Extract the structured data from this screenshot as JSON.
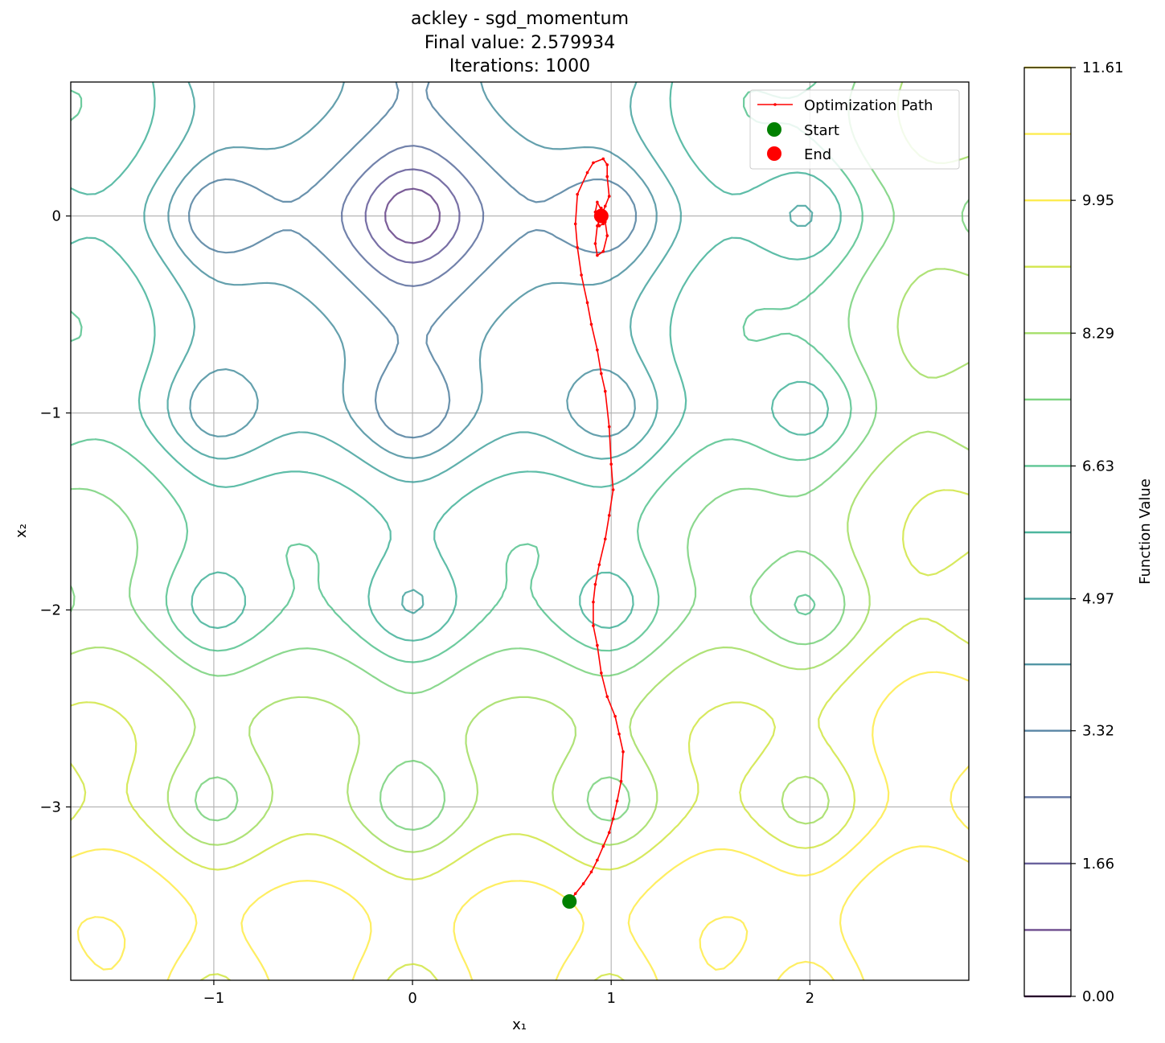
{
  "chart_data": {
    "type": "contour",
    "title_lines": [
      "ackley - sgd_momentum",
      "Final value: 2.579934",
      "Iterations: 1000"
    ],
    "xlabel": "x₁",
    "ylabel": "x₂",
    "xlim": [
      -1.72,
      2.8
    ],
    "ylim": [
      -3.88,
      0.68
    ],
    "x_ticks": [
      -1,
      0,
      1,
      2
    ],
    "x_tick_labels": [
      "−1",
      "0",
      "1",
      "2"
    ],
    "y_ticks": [
      0,
      -1,
      -2,
      -3
    ],
    "y_tick_labels": [
      "0",
      "−1",
      "−2",
      "−3"
    ],
    "grid": true,
    "contour_function": "ackley",
    "contour_levels": [
      0.0,
      0.83,
      1.66,
      2.49,
      3.32,
      4.15,
      4.97,
      5.8,
      6.63,
      7.46,
      8.29,
      9.12,
      9.95,
      10.78,
      11.61
    ],
    "colorbar": {
      "label": "Function Value",
      "range": [
        0.0,
        11.61
      ],
      "tick_values": [
        0.0,
        1.66,
        3.32,
        4.97,
        6.63,
        8.29,
        9.95,
        11.61
      ],
      "tick_labels": [
        "0.00",
        "1.66",
        "3.32",
        "4.97",
        "6.63",
        "8.29",
        "9.95",
        "11.61"
      ],
      "line_colors": [
        "#440154",
        "#481f70",
        "#443983",
        "#3b528b",
        "#31688e",
        "#287c8e",
        "#21918c",
        "#20a486",
        "#35b779",
        "#5ec962",
        "#90d743",
        "#c8e020",
        "#fde725",
        "#fde725",
        "#fde725"
      ]
    },
    "legend": {
      "placement": "upper right",
      "entries": [
        {
          "label": "Optimization Path",
          "marker": "line",
          "color": "#ff0000"
        },
        {
          "label": "Start",
          "marker": "circle",
          "color": "#008000"
        },
        {
          "label": "End",
          "marker": "circle",
          "color": "#ff0000"
        }
      ]
    },
    "path": {
      "color": "#ff0000",
      "points": [
        [
          0.79,
          -3.48
        ],
        [
          0.82,
          -3.44
        ],
        [
          0.86,
          -3.39
        ],
        [
          0.9,
          -3.33
        ],
        [
          0.93,
          -3.27
        ],
        [
          0.96,
          -3.2
        ],
        [
          0.99,
          -3.13
        ],
        [
          1.01,
          -3.06
        ],
        [
          1.03,
          -2.97
        ],
        [
          1.05,
          -2.87
        ],
        [
          1.06,
          -2.72
        ],
        [
          1.04,
          -2.63
        ],
        [
          1.02,
          -2.54
        ],
        [
          0.98,
          -2.44
        ],
        [
          0.95,
          -2.32
        ],
        [
          0.93,
          -2.18
        ],
        [
          0.91,
          -2.08
        ],
        [
          0.91,
          -1.96
        ],
        [
          0.92,
          -1.87
        ],
        [
          0.94,
          -1.77
        ],
        [
          0.97,
          -1.64
        ],
        [
          0.99,
          -1.52
        ],
        [
          1.01,
          -1.39
        ],
        [
          1.0,
          -1.26
        ],
        [
          0.99,
          -1.07
        ],
        [
          0.97,
          -0.89
        ],
        [
          0.95,
          -0.8
        ],
        [
          0.93,
          -0.68
        ],
        [
          0.9,
          -0.55
        ],
        [
          0.88,
          -0.44
        ],
        [
          0.85,
          -0.3
        ],
        [
          0.83,
          -0.16
        ],
        [
          0.82,
          -0.04
        ],
        [
          0.83,
          0.11
        ],
        [
          0.88,
          0.22
        ],
        [
          0.91,
          0.27
        ],
        [
          0.96,
          0.29
        ],
        [
          0.98,
          0.26
        ],
        [
          0.98,
          0.2
        ],
        [
          0.99,
          0.1
        ],
        [
          0.97,
          0.05
        ],
        [
          0.95,
          0.0
        ],
        [
          0.93,
          -0.05
        ],
        [
          0.92,
          -0.14
        ],
        [
          0.93,
          -0.2
        ],
        [
          0.96,
          -0.18
        ],
        [
          0.98,
          -0.1
        ],
        [
          0.97,
          -0.03
        ],
        [
          0.95,
          0.03
        ],
        [
          0.93,
          0.07
        ],
        [
          0.92,
          0.02
        ],
        [
          0.94,
          -0.05
        ],
        [
          0.96,
          -0.04
        ],
        [
          0.97,
          0.01
        ],
        [
          0.95,
          0.04
        ],
        [
          0.94,
          0.0
        ],
        [
          0.95,
          -0.02
        ],
        [
          0.955,
          0.005
        ],
        [
          0.95,
          0.0
        ]
      ],
      "start": [
        0.79,
        -3.48
      ],
      "end": [
        0.95,
        0.0
      ]
    }
  }
}
